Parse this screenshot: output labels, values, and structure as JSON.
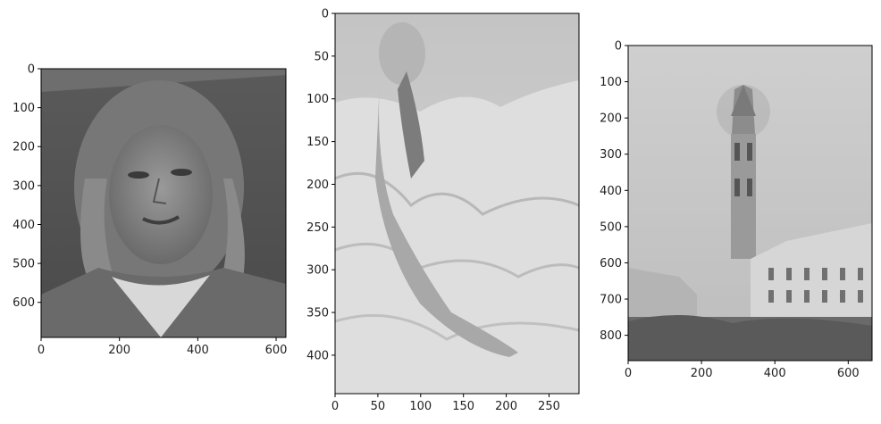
{
  "panels": [
    {
      "id": "face",
      "description_icon": "grayscale-face-photo",
      "x_ticks": [
        "0",
        "200",
        "400",
        "600"
      ],
      "y_ticks": [
        "0",
        "100",
        "200",
        "300",
        "400",
        "500",
        "600"
      ],
      "xlim": [
        0,
        625
      ],
      "ylim": [
        0,
        690
      ]
    },
    {
      "id": "sculpture",
      "description_icon": "grayscale-sculpture-drapery-photo",
      "x_ticks": [
        "0",
        "50",
        "100",
        "150",
        "200",
        "250"
      ],
      "y_ticks": [
        "0",
        "50",
        "100",
        "150",
        "200",
        "250",
        "300",
        "350",
        "400"
      ],
      "xlim": [
        0,
        285
      ],
      "ylim": [
        0,
        445
      ]
    },
    {
      "id": "tower",
      "description_icon": "grayscale-clock-tower-photo",
      "x_ticks": [
        "0",
        "200",
        "400",
        "600"
      ],
      "y_ticks": [
        "0",
        "100",
        "200",
        "300",
        "400",
        "500",
        "600",
        "700",
        "800"
      ],
      "xlim": [
        0,
        665
      ],
      "ylim": [
        0,
        870
      ]
    }
  ],
  "colors": {
    "background": "#ffffff",
    "axes": "#000000",
    "text": "#222222"
  }
}
